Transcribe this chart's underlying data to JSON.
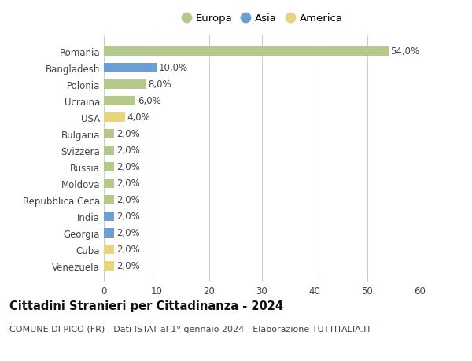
{
  "categories": [
    "Venezuela",
    "Cuba",
    "Georgia",
    "India",
    "Repubblica Ceca",
    "Moldova",
    "Russia",
    "Svizzera",
    "Bulgaria",
    "USA",
    "Ucraina",
    "Polonia",
    "Bangladesh",
    "Romania"
  ],
  "values": [
    2.0,
    2.0,
    2.0,
    2.0,
    2.0,
    2.0,
    2.0,
    2.0,
    2.0,
    4.0,
    6.0,
    8.0,
    10.0,
    54.0
  ],
  "colors": [
    "#e8d47a",
    "#e8d47a",
    "#6b9fd4",
    "#6b9fd4",
    "#b5c98a",
    "#b5c98a",
    "#b5c98a",
    "#b5c98a",
    "#b5c98a",
    "#e8d47a",
    "#b5c98a",
    "#b5c98a",
    "#6b9fd4",
    "#b5c98a"
  ],
  "labels": [
    "2,0%",
    "2,0%",
    "2,0%",
    "2,0%",
    "2,0%",
    "2,0%",
    "2,0%",
    "2,0%",
    "2,0%",
    "4,0%",
    "6,0%",
    "8,0%",
    "10,0%",
    "54,0%"
  ],
  "legend_items": [
    {
      "label": "Europa",
      "color": "#b5c98a"
    },
    {
      "label": "Asia",
      "color": "#6b9fd4"
    },
    {
      "label": "America",
      "color": "#e8d47a"
    }
  ],
  "xlim": [
    0,
    60
  ],
  "xticks": [
    0,
    10,
    20,
    30,
    40,
    50,
    60
  ],
  "title": "Cittadini Stranieri per Cittadinanza - 2024",
  "subtitle": "COMUNE DI PICO (FR) - Dati ISTAT al 1° gennaio 2024 - Elaborazione TUTTITALIA.IT",
  "bar_height": 0.55,
  "background_color": "#ffffff",
  "grid_color": "#cccccc",
  "label_fontsize": 8.5,
  "title_fontsize": 10.5,
  "subtitle_fontsize": 8,
  "ytick_fontsize": 8.5,
  "xtick_fontsize": 8.5,
  "legend_fontsize": 9.5
}
